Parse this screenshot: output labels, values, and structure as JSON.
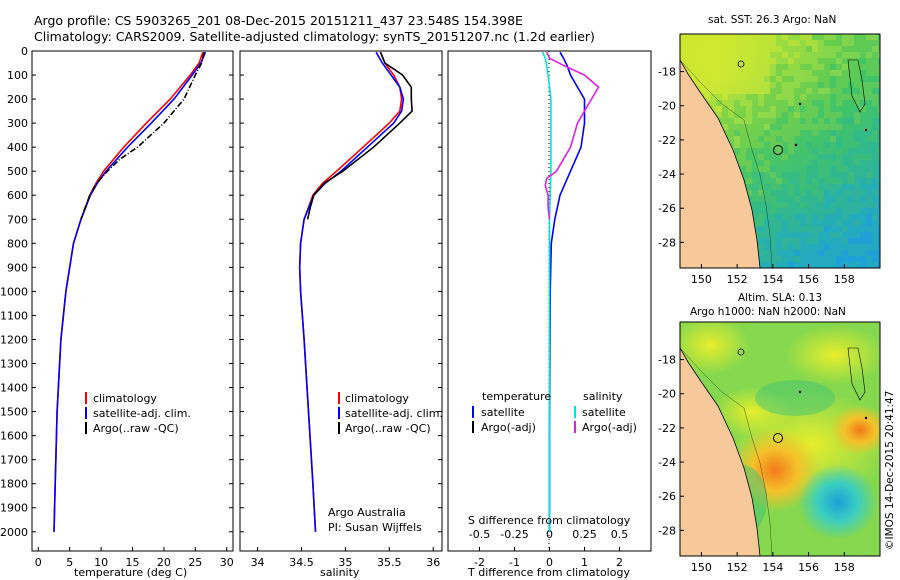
{
  "header": {
    "line1": "Argo profile: CS 5903265_201 08-Dec-2015 20151211_437 23.548S 154.398E",
    "line2": "Climatology: CARS2009. Satellite-adjusted climatology: synTS_20151207.nc (1.2d earlier)"
  },
  "colors": {
    "climatology": "#ff0000",
    "satellite": "#0000ff",
    "argo": "#000000",
    "sal_satellite": "#00e0e0",
    "sal_argo": "#e020e0",
    "land": "#f6c89a"
  },
  "chart_data": [
    {
      "type": "line",
      "panel": "temperature",
      "xlabel": "temperature (deg C)",
      "ylabel": "",
      "xlim": [
        -1,
        31
      ],
      "ylim": [
        2080,
        0
      ],
      "xticks": [
        0,
        5,
        10,
        15,
        20,
        25,
        30
      ],
      "yticks": [
        0,
        100,
        200,
        300,
        400,
        500,
        600,
        700,
        800,
        900,
        1000,
        1100,
        1200,
        1300,
        1400,
        1500,
        1600,
        1700,
        1800,
        1900,
        2000
      ],
      "legend": [
        "climatology",
        "satellite-adj. clim.",
        "Argo(..raw -QC)"
      ],
      "series": [
        {
          "name": "climatology",
          "color": "#ff0000",
          "depth": [
            5,
            50,
            100,
            200,
            300,
            400,
            500,
            550,
            600,
            700,
            800,
            1000,
            1200,
            1500,
            1800,
            2000
          ],
          "values": [
            26.2,
            25.6,
            24.2,
            21.0,
            17.2,
            13.6,
            10.4,
            9.2,
            8.2,
            6.8,
            5.6,
            4.4,
            3.6,
            3.0,
            2.7,
            2.5
          ]
        },
        {
          "name": "satellite-adj. clim.",
          "color": "#0000ff",
          "depth": [
            5,
            50,
            100,
            200,
            300,
            400,
            500,
            550,
            600,
            700,
            800,
            1000,
            1200,
            1500,
            1800,
            2000
          ],
          "values": [
            26.6,
            25.9,
            24.5,
            21.6,
            18.0,
            14.2,
            10.8,
            9.4,
            8.3,
            6.8,
            5.6,
            4.4,
            3.6,
            3.0,
            2.7,
            2.5
          ]
        },
        {
          "name": "Argo(..raw -QC)",
          "color": "#000000",
          "depth": [
            5,
            50,
            100,
            200,
            300,
            400,
            450,
            500,
            550,
            600,
            650,
            700
          ],
          "values": [
            26.4,
            26.0,
            25.0,
            23.2,
            20.0,
            15.8,
            13.0,
            11.0,
            9.3,
            8.2,
            7.5,
            6.8
          ]
        }
      ]
    },
    {
      "type": "line",
      "panel": "salinity",
      "xlabel": "salinity",
      "xlim": [
        33.8,
        36.1
      ],
      "ylim": [
        2080,
        0
      ],
      "xticks": [
        34,
        34.5,
        35,
        35.5,
        36
      ],
      "legend": [
        "climatology",
        "satellite-adj. clim.",
        "Argo(..raw -QC)"
      ],
      "annotation": [
        "Argo Australia",
        "PI: Susan Wijffels"
      ],
      "series": [
        {
          "name": "climatology",
          "color": "#ff0000",
          "depth": [
            5,
            50,
            100,
            150,
            200,
            250,
            300,
            400,
            500,
            550,
            600,
            700,
            800,
            900,
            1000,
            1200,
            1500,
            1800,
            2000
          ],
          "values": [
            35.4,
            35.45,
            35.55,
            35.62,
            35.64,
            35.62,
            35.5,
            35.2,
            34.9,
            34.74,
            34.63,
            34.53,
            34.49,
            34.48,
            34.49,
            34.53,
            34.58,
            34.63,
            34.66
          ]
        },
        {
          "name": "satellite-adj. clim.",
          "color": "#0000ff",
          "depth": [
            5,
            50,
            100,
            150,
            200,
            250,
            300,
            400,
            500,
            550,
            600,
            700,
            800,
            900,
            1000,
            1200,
            1500,
            1800,
            2000
          ],
          "values": [
            35.35,
            35.42,
            35.52,
            35.62,
            35.66,
            35.64,
            35.55,
            35.25,
            34.95,
            34.77,
            34.64,
            34.53,
            34.49,
            34.48,
            34.49,
            34.53,
            34.58,
            34.63,
            34.66
          ]
        },
        {
          "name": "Argo(..raw -QC)",
          "color": "#000000",
          "depth": [
            5,
            50,
            100,
            150,
            200,
            250,
            300,
            400,
            500,
            550,
            600,
            650,
            700
          ],
          "values": [
            35.4,
            35.45,
            35.65,
            35.75,
            35.75,
            35.76,
            35.62,
            35.32,
            34.97,
            34.76,
            34.64,
            34.6,
            34.57
          ]
        }
      ]
    },
    {
      "type": "line",
      "panel": "difference",
      "xlabel": "T difference from climatology",
      "xlabel2": "S difference from climatology",
      "xlim": [
        -2.9,
        2.9
      ],
      "ylim": [
        2080,
        0
      ],
      "xticks": [
        -2,
        -1,
        0,
        1,
        2
      ],
      "xticks2": [
        -0.5,
        -0.25,
        0,
        0.25,
        0.5
      ],
      "legend_titles": [
        "temperature",
        "salinity"
      ],
      "legend": [
        "satellite",
        "Argo(-adj)",
        "satellite",
        "Argo(-adj)"
      ],
      "series": [
        {
          "name": "temperature satellite",
          "color": "#0000ff",
          "depth": [
            5,
            30,
            60,
            100,
            150,
            200,
            300,
            400,
            500,
            600,
            700,
            800,
            1000,
            1300,
            1600,
            2000
          ],
          "values": [
            0.3,
            0.4,
            0.5,
            0.6,
            0.8,
            1.0,
            1.0,
            0.9,
            0.6,
            0.3,
            0.15,
            0.05,
            0.02,
            0.01,
            0.0,
            0.0
          ]
        },
        {
          "name": "salinity satellite",
          "color": "#00e0e0",
          "depth": [
            5,
            30,
            60,
            100,
            150,
            200,
            300,
            400,
            500,
            600,
            700,
            800,
            1000,
            1300,
            1600,
            2000
          ],
          "values": [
            -0.05,
            -0.03,
            -0.02,
            -0.01,
            0.0,
            0.01,
            0.01,
            0.01,
            0.01,
            0.005,
            0.0,
            0.0,
            0.0,
            0.0,
            0.0,
            0.0
          ]
        },
        {
          "name": "salinity Argo(-adj)",
          "color": "#e020e0",
          "depth": [
            5,
            30,
            60,
            100,
            150,
            200,
            300,
            400,
            450,
            500,
            530,
            560,
            600,
            650,
            700
          ],
          "values": [
            -0.02,
            0.0,
            0.1,
            0.25,
            0.35,
            0.3,
            0.2,
            0.15,
            0.1,
            0.05,
            -0.02,
            -0.03,
            -0.01,
            -0.01,
            0.0
          ]
        },
        {
          "name": "temperature Argo(-adj)",
          "color": "#000000",
          "depth": [],
          "values": []
        }
      ]
    },
    {
      "type": "heatmap",
      "panel": "sst-map",
      "title": "sat. SST: 26.3 Argo: NaN",
      "xlim": [
        148.8,
        160.0
      ],
      "ylim": [
        -29.5,
        -15.8
      ],
      "xticks": [
        150,
        152,
        154,
        156,
        158
      ],
      "yticks": [
        -18,
        -20,
        -22,
        -24,
        -26,
        -28
      ]
    },
    {
      "type": "heatmap",
      "panel": "sla-map",
      "title": "Altim. SLA: 0.13",
      "subtitle": "Argo h1000: NaN h2000: NaN",
      "xlim": [
        148.8,
        160.0
      ],
      "ylim": [
        -29.5,
        -15.8
      ],
      "xticks": [
        150,
        152,
        154,
        156,
        158
      ],
      "yticks": [
        -18,
        -20,
        -22,
        -24,
        -26,
        -28
      ]
    }
  ],
  "footer": {
    "credit": "©IMOS 14-Dec-2015 20:41:47"
  }
}
